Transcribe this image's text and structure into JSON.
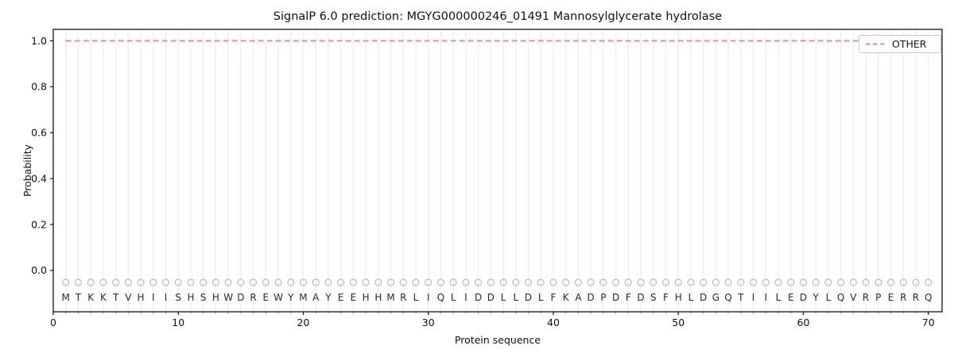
{
  "figure": {
    "background": "#ffffff"
  },
  "legend": {
    "label": "OTHER",
    "position": "upper-right"
  },
  "chart_data": {
    "type": "line",
    "title": "SignalP 6.0 prediction: MGYG000000246_01491 Mannosylglycerate hydrolase",
    "xlabel": "Protein sequence",
    "ylabel": "Probability",
    "xlim": [
      0,
      71.1
    ],
    "ylim": [
      -0.18,
      1.05
    ],
    "grid": "light vertical gridline at every residue position",
    "legend_position": "upper right",
    "x_ticks": {
      "values": [
        0,
        10,
        20,
        30,
        40,
        50,
        60,
        70
      ],
      "labels": [
        "0",
        "10",
        "20",
        "30",
        "40",
        "50",
        "60",
        "70"
      ]
    },
    "y_ticks": {
      "values": [
        0,
        0.2,
        0.4,
        0.6,
        0.8,
        1.0
      ],
      "labels": [
        "0.0",
        "0.2",
        "0.4",
        "0.6",
        "0.8",
        "1.0"
      ]
    },
    "series": [
      {
        "name": "OTHER",
        "style": "dashed",
        "color": "#ee8888",
        "x": [
          1,
          2,
          3,
          4,
          5,
          6,
          7,
          8,
          9,
          10,
          11,
          12,
          13,
          14,
          15,
          16,
          17,
          18,
          19,
          20,
          21,
          22,
          23,
          24,
          25,
          26,
          27,
          28,
          29,
          30,
          31,
          32,
          33,
          34,
          35,
          36,
          37,
          38,
          39,
          40,
          41,
          42,
          43,
          44,
          45,
          46,
          47,
          48,
          49,
          50,
          51,
          52,
          53,
          54,
          55,
          56,
          57,
          58,
          59,
          60,
          61,
          62,
          63,
          64,
          65,
          66,
          67,
          68,
          69,
          70
        ],
        "values": [
          1.0,
          1.0,
          1.0,
          1.0,
          1.0,
          1.0,
          1.0,
          1.0,
          1.0,
          1.0,
          1.0,
          1.0,
          1.0,
          1.0,
          1.0,
          1.0,
          1.0,
          1.0,
          1.0,
          1.0,
          1.0,
          1.0,
          1.0,
          1.0,
          1.0,
          1.0,
          1.0,
          1.0,
          1.0,
          1.0,
          1.0,
          1.0,
          1.0,
          1.0,
          1.0,
          1.0,
          1.0,
          1.0,
          1.0,
          1.0,
          1.0,
          1.0,
          1.0,
          1.0,
          1.0,
          1.0,
          1.0,
          1.0,
          1.0,
          1.0,
          1.0,
          1.0,
          1.0,
          1.0,
          1.0,
          1.0,
          1.0,
          1.0,
          1.0,
          1.0,
          1.0,
          1.0,
          1.0,
          1.0,
          1.0,
          1.0,
          1.0,
          1.0,
          1.0,
          1.0
        ]
      }
    ],
    "sequence": {
      "residues": "MTKKTVHIISHSHWDREWYMAYEEHHMRLIQLIDDLLDLFKADPDFDSFHLDGQTIILEDYLQVRPERRQ",
      "marker": "open-circle",
      "marker_y": -0.052,
      "letter_y": -0.132,
      "marker_color": "#b3b3b3",
      "letter_color": "#2b2b2b"
    }
  }
}
